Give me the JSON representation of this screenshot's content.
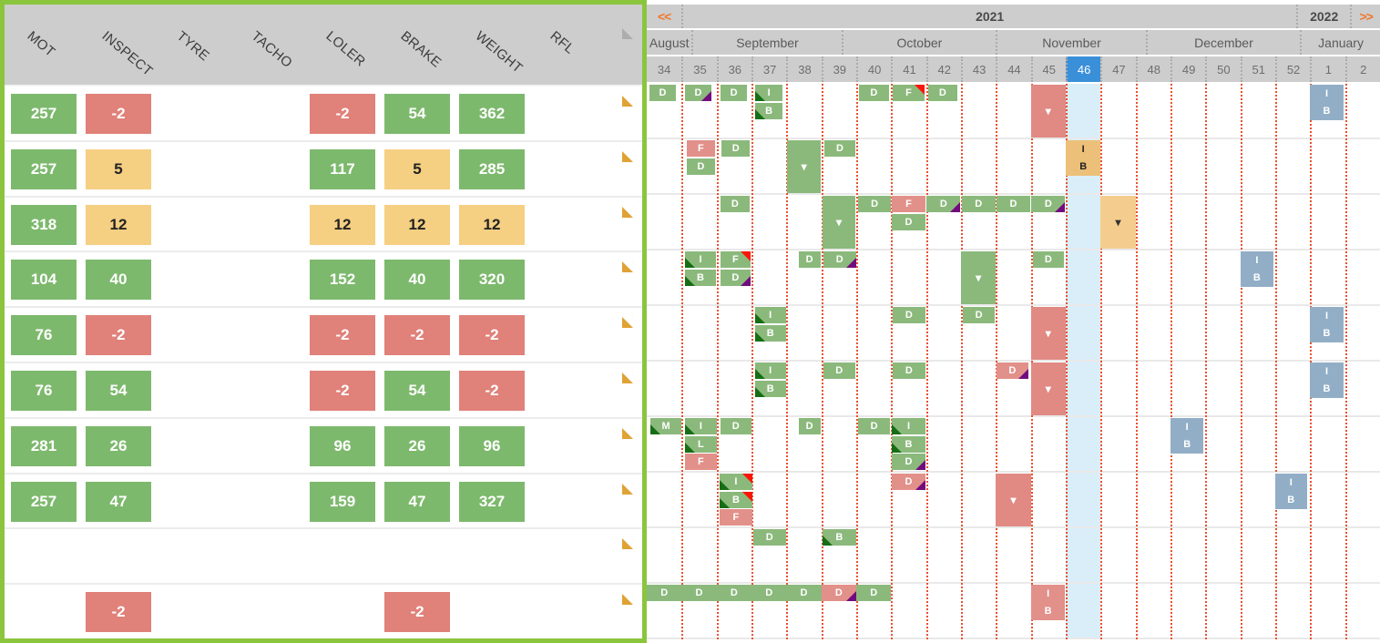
{
  "left_panel": {
    "columns": [
      "MOT",
      "INSPECT",
      "TYRE",
      "TACHO",
      "LOLER",
      "BRAKE",
      "WEIGHT",
      "RFL"
    ],
    "doc_column_icon": "document-icon",
    "rows": [
      {
        "cells": [
          {
            "c": 0,
            "v": "257",
            "s": "g"
          },
          {
            "c": 1,
            "v": "-2",
            "s": "r"
          },
          {
            "c": 4,
            "v": "-2",
            "s": "r"
          },
          {
            "c": 5,
            "v": "54",
            "s": "g"
          },
          {
            "c": 6,
            "v": "362",
            "s": "g"
          }
        ]
      },
      {
        "cells": [
          {
            "c": 0,
            "v": "257",
            "s": "g"
          },
          {
            "c": 1,
            "v": "5",
            "s": "a"
          },
          {
            "c": 4,
            "v": "117",
            "s": "g"
          },
          {
            "c": 5,
            "v": "5",
            "s": "a"
          },
          {
            "c": 6,
            "v": "285",
            "s": "g"
          }
        ]
      },
      {
        "cells": [
          {
            "c": 0,
            "v": "318",
            "s": "g"
          },
          {
            "c": 1,
            "v": "12",
            "s": "a"
          },
          {
            "c": 4,
            "v": "12",
            "s": "a"
          },
          {
            "c": 5,
            "v": "12",
            "s": "a"
          },
          {
            "c": 6,
            "v": "12",
            "s": "a"
          }
        ]
      },
      {
        "cells": [
          {
            "c": 0,
            "v": "104",
            "s": "g"
          },
          {
            "c": 1,
            "v": "40",
            "s": "g"
          },
          {
            "c": 4,
            "v": "152",
            "s": "g"
          },
          {
            "c": 5,
            "v": "40",
            "s": "g"
          },
          {
            "c": 6,
            "v": "320",
            "s": "g"
          }
        ]
      },
      {
        "cells": [
          {
            "c": 0,
            "v": "76",
            "s": "g"
          },
          {
            "c": 1,
            "v": "-2",
            "s": "r"
          },
          {
            "c": 4,
            "v": "-2",
            "s": "r"
          },
          {
            "c": 5,
            "v": "-2",
            "s": "r"
          },
          {
            "c": 6,
            "v": "-2",
            "s": "r"
          }
        ]
      },
      {
        "cells": [
          {
            "c": 0,
            "v": "76",
            "s": "g"
          },
          {
            "c": 1,
            "v": "54",
            "s": "g"
          },
          {
            "c": 4,
            "v": "-2",
            "s": "r"
          },
          {
            "c": 5,
            "v": "54",
            "s": "g"
          },
          {
            "c": 6,
            "v": "-2",
            "s": "r"
          }
        ]
      },
      {
        "cells": [
          {
            "c": 0,
            "v": "281",
            "s": "g"
          },
          {
            "c": 1,
            "v": "26",
            "s": "g"
          },
          {
            "c": 4,
            "v": "96",
            "s": "g"
          },
          {
            "c": 5,
            "v": "26",
            "s": "g"
          },
          {
            "c": 6,
            "v": "96",
            "s": "g"
          }
        ]
      },
      {
        "cells": [
          {
            "c": 0,
            "v": "257",
            "s": "g"
          },
          {
            "c": 1,
            "v": "47",
            "s": "g"
          },
          {
            "c": 4,
            "v": "159",
            "s": "g"
          },
          {
            "c": 5,
            "v": "47",
            "s": "g"
          },
          {
            "c": 6,
            "v": "327",
            "s": "g"
          }
        ]
      },
      {
        "cells": []
      },
      {
        "cells": [
          {
            "c": 1,
            "v": "-2",
            "s": "r"
          },
          {
            "c": 5,
            "v": "-2",
            "s": "r"
          }
        ]
      }
    ]
  },
  "calendar": {
    "nav": {
      "prev": "<<",
      "next": ">>"
    },
    "year_row": [
      {
        "label": "<<",
        "span": 1,
        "kind": "nav-prev"
      },
      {
        "label": "2021",
        "span": 17.6,
        "kind": "year"
      },
      {
        "label": "2022",
        "span": 1.55,
        "kind": "year"
      },
      {
        "label": ">>",
        "span": 0.85,
        "kind": "nav-next"
      }
    ],
    "months": [
      {
        "label": "August",
        "span": 1.29
      },
      {
        "label": "September",
        "span": 4.28
      },
      {
        "label": "October",
        "span": 4.43
      },
      {
        "label": "November",
        "span": 4.29
      },
      {
        "label": "December",
        "span": 4.42
      },
      {
        "label": "January",
        "span": 2.29
      }
    ],
    "weeks": [
      "34",
      "35",
      "36",
      "37",
      "38",
      "39",
      "40",
      "41",
      "42",
      "43",
      "44",
      "45",
      "46",
      "47",
      "48",
      "49",
      "50",
      "51",
      "52",
      "1",
      "2"
    ],
    "current_week": "46",
    "current_week_index": 12,
    "row_count": 10,
    "markers": [
      {
        "r": 0,
        "c": 0,
        "o": 0.08,
        "w": 0.75,
        "l": 0,
        "t": "b",
        "x": "D",
        "s": "g"
      },
      {
        "r": 0,
        "c": 1,
        "o": 0.1,
        "w": 0.75,
        "l": 0,
        "t": "b",
        "x": "D",
        "s": "g",
        "tri": [
          "br"
        ]
      },
      {
        "r": 0,
        "c": 2,
        "o": 0.12,
        "w": 0.75,
        "l": 0,
        "t": "b",
        "x": "D",
        "s": "g"
      },
      {
        "r": 0,
        "c": 3,
        "o": 0.1,
        "w": 0.8,
        "l": 0,
        "t": "b",
        "x": "I",
        "s": "g",
        "tri": [
          "bl"
        ]
      },
      {
        "r": 0,
        "c": 3,
        "o": 0.1,
        "w": 0.8,
        "l": 1,
        "t": "b",
        "x": "B",
        "s": "g",
        "tri": [
          "bl"
        ]
      },
      {
        "r": 0,
        "c": 6,
        "o": 0.08,
        "w": 0.85,
        "l": 0,
        "t": "b",
        "x": "D",
        "s": "g"
      },
      {
        "r": 0,
        "c": 7,
        "o": 0.05,
        "w": 0.9,
        "l": 0,
        "t": "b",
        "x": "F",
        "s": "g",
        "tri": [
          "tr"
        ]
      },
      {
        "r": 0,
        "c": 8,
        "o": 0.05,
        "w": 0.85,
        "l": 0,
        "t": "b",
        "x": "D",
        "s": "g"
      },
      {
        "r": 0,
        "c": 11,
        "o": 0,
        "w": 1,
        "t": "t",
        "s": "rt"
      },
      {
        "r": 0,
        "c": 19,
        "o": 0,
        "w": 0.95,
        "t": "ib",
        "x": "I|B",
        "s": "sb"
      },
      {
        "r": 1,
        "c": 1,
        "o": 0.15,
        "w": 0.8,
        "l": 0,
        "t": "b",
        "x": "F",
        "s": "s"
      },
      {
        "r": 1,
        "c": 1,
        "o": 0.15,
        "w": 0.8,
        "l": 1,
        "t": "b",
        "x": "D",
        "s": "g"
      },
      {
        "r": 1,
        "c": 2,
        "o": 0.15,
        "w": 0.8,
        "l": 0,
        "t": "b",
        "x": "D",
        "s": "g"
      },
      {
        "r": 1,
        "c": 4,
        "o": 0.03,
        "w": 0.95,
        "t": "t",
        "s": "gt"
      },
      {
        "r": 1,
        "c": 5,
        "o": 0.08,
        "w": 0.9,
        "l": 0,
        "t": "b",
        "x": "D",
        "s": "g"
      },
      {
        "r": 1,
        "c": 12,
        "o": 0,
        "w": 1,
        "t": "ib",
        "x": "I|B",
        "s": "ob"
      },
      {
        "r": 2,
        "c": 2,
        "o": 0.1,
        "w": 0.85,
        "l": 0,
        "t": "b",
        "x": "D",
        "s": "g"
      },
      {
        "r": 2,
        "c": 5,
        "o": 0.03,
        "w": 0.95,
        "t": "t",
        "s": "gt"
      },
      {
        "r": 2,
        "c": 6,
        "o": 0.05,
        "w": 0.95,
        "l": 0,
        "t": "b",
        "x": "D",
        "s": "g"
      },
      {
        "r": 2,
        "c": 7,
        "o": 0.02,
        "w": 0.96,
        "l": 0,
        "t": "b",
        "x": "F",
        "s": "s"
      },
      {
        "r": 2,
        "c": 7,
        "o": 0.02,
        "w": 0.96,
        "l": 1,
        "t": "b",
        "x": "D",
        "s": "g"
      },
      {
        "r": 2,
        "c": 8,
        "o": 0.02,
        "w": 0.96,
        "l": 0,
        "t": "b",
        "x": "D",
        "s": "g",
        "tri": [
          "br"
        ]
      },
      {
        "r": 2,
        "c": 9,
        "o": 0.02,
        "w": 0.96,
        "l": 0,
        "t": "b",
        "x": "D",
        "s": "g"
      },
      {
        "r": 2,
        "c": 10,
        "o": 0.02,
        "w": 0.96,
        "l": 0,
        "t": "b",
        "x": "D",
        "s": "g"
      },
      {
        "r": 2,
        "c": 11,
        "o": 0.02,
        "w": 0.96,
        "l": 0,
        "t": "b",
        "x": "D",
        "s": "g",
        "tri": [
          "br"
        ]
      },
      {
        "r": 2,
        "c": 13,
        "o": 0,
        "w": 1,
        "t": "t",
        "s": "ot"
      },
      {
        "r": 3,
        "c": 1,
        "o": 0.1,
        "w": 0.88,
        "l": 0,
        "t": "b",
        "x": "I",
        "s": "g",
        "tri": [
          "bl"
        ]
      },
      {
        "r": 3,
        "c": 1,
        "o": 0.1,
        "w": 0.88,
        "l": 1,
        "t": "b",
        "x": "B",
        "s": "g",
        "tri": [
          "bl"
        ]
      },
      {
        "r": 3,
        "c": 2,
        "o": 0.1,
        "w": 0.88,
        "l": 0,
        "t": "b",
        "x": "F",
        "s": "g",
        "tri": [
          "tr"
        ]
      },
      {
        "r": 3,
        "c": 2,
        "o": 0.1,
        "w": 0.88,
        "l": 1,
        "t": "b",
        "x": "D",
        "s": "g",
        "tri": [
          "br"
        ]
      },
      {
        "r": 3,
        "c": 4,
        "o": 0.35,
        "w": 0.62,
        "l": 0,
        "t": "b",
        "x": "D",
        "s": "g"
      },
      {
        "r": 3,
        "c": 5,
        "o": 0.05,
        "w": 0.95,
        "l": 0,
        "t": "b",
        "x": "D",
        "s": "g",
        "tri": [
          "br"
        ]
      },
      {
        "r": 3,
        "c": 9,
        "o": 0,
        "w": 1,
        "t": "t",
        "s": "gt"
      },
      {
        "r": 3,
        "c": 11,
        "o": 0.05,
        "w": 0.9,
        "l": 0,
        "t": "b",
        "x": "D",
        "s": "g"
      },
      {
        "r": 3,
        "c": 17,
        "o": 0,
        "w": 0.95,
        "t": "ib",
        "x": "I|B",
        "s": "sb"
      },
      {
        "r": 4,
        "c": 3,
        "o": 0.1,
        "w": 0.88,
        "l": 0,
        "t": "b",
        "x": "I",
        "s": "g",
        "tri": [
          "bl"
        ]
      },
      {
        "r": 4,
        "c": 3,
        "o": 0.1,
        "w": 0.88,
        "l": 1,
        "t": "b",
        "x": "B",
        "s": "g",
        "tri": [
          "bl"
        ]
      },
      {
        "r": 4,
        "c": 7,
        "o": 0.05,
        "w": 0.92,
        "l": 0,
        "t": "b",
        "x": "D",
        "s": "g"
      },
      {
        "r": 4,
        "c": 9,
        "o": 0.05,
        "w": 0.92,
        "l": 0,
        "t": "b",
        "x": "D",
        "s": "g"
      },
      {
        "r": 4,
        "c": 11,
        "o": 0,
        "w": 1,
        "t": "t",
        "s": "rt"
      },
      {
        "r": 4,
        "c": 19,
        "o": 0,
        "w": 0.95,
        "t": "ib",
        "x": "I|B",
        "s": "sb"
      },
      {
        "r": 5,
        "c": 3,
        "o": 0.1,
        "w": 0.88,
        "l": 0,
        "t": "b",
        "x": "I",
        "s": "g",
        "tri": [
          "bl"
        ]
      },
      {
        "r": 5,
        "c": 3,
        "o": 0.1,
        "w": 0.88,
        "l": 1,
        "t": "b",
        "x": "B",
        "s": "g",
        "tri": [
          "bl"
        ]
      },
      {
        "r": 5,
        "c": 5,
        "o": 0.05,
        "w": 0.92,
        "l": 0,
        "t": "b",
        "x": "D",
        "s": "g"
      },
      {
        "r": 5,
        "c": 7,
        "o": 0.05,
        "w": 0.92,
        "l": 0,
        "t": "b",
        "x": "D",
        "s": "g"
      },
      {
        "r": 5,
        "c": 10,
        "o": 0.02,
        "w": 0.9,
        "l": 0,
        "t": "b",
        "x": "D",
        "s": "s",
        "tri": [
          "br"
        ]
      },
      {
        "r": 5,
        "c": 11,
        "o": 0,
        "w": 1,
        "t": "t",
        "s": "rt"
      },
      {
        "r": 5,
        "c": 19,
        "o": 0,
        "w": 0.95,
        "t": "ib",
        "x": "I|B",
        "s": "sb"
      },
      {
        "r": 6,
        "c": 0,
        "o": 0.1,
        "w": 0.9,
        "l": 0,
        "t": "b",
        "x": "M",
        "s": "g",
        "tri": [
          "bl"
        ]
      },
      {
        "r": 6,
        "c": 1,
        "o": 0.1,
        "w": 0.9,
        "l": 0,
        "t": "b",
        "x": "I",
        "s": "g",
        "tri": [
          "bl"
        ]
      },
      {
        "r": 6,
        "c": 1,
        "o": 0.1,
        "w": 0.9,
        "l": 1,
        "t": "b",
        "x": "L",
        "s": "g",
        "tri": [
          "bl"
        ]
      },
      {
        "r": 6,
        "c": 1,
        "o": 0.1,
        "w": 0.9,
        "l": 2,
        "t": "b",
        "x": "F",
        "s": "s"
      },
      {
        "r": 6,
        "c": 2,
        "o": 0.1,
        "w": 0.9,
        "l": 0,
        "t": "b",
        "x": "D",
        "s": "g"
      },
      {
        "r": 6,
        "c": 4,
        "o": 0.35,
        "w": 0.62,
        "l": 0,
        "t": "b",
        "x": "D",
        "s": "g"
      },
      {
        "r": 6,
        "c": 6,
        "o": 0.05,
        "w": 0.92,
        "l": 0,
        "t": "b",
        "x": "D",
        "s": "g"
      },
      {
        "r": 6,
        "c": 7,
        "o": 0.02,
        "w": 0.96,
        "l": 0,
        "t": "b",
        "x": "I",
        "s": "g",
        "tri": [
          "bl"
        ]
      },
      {
        "r": 6,
        "c": 7,
        "o": 0.02,
        "w": 0.96,
        "l": 1,
        "t": "b",
        "x": "B",
        "s": "g",
        "tri": [
          "bl"
        ]
      },
      {
        "r": 6,
        "c": 7,
        "o": 0.02,
        "w": 0.96,
        "l": 2,
        "t": "b",
        "x": "D",
        "s": "g",
        "tri": [
          "br"
        ]
      },
      {
        "r": 6,
        "c": 15,
        "o": 0,
        "w": 0.95,
        "t": "ib",
        "x": "I|B",
        "s": "sb"
      },
      {
        "r": 7,
        "c": 2,
        "o": 0.08,
        "w": 0.95,
        "l": 0,
        "t": "b",
        "x": "I",
        "s": "g",
        "tri": [
          "bl",
          "tr"
        ]
      },
      {
        "r": 7,
        "c": 2,
        "o": 0.08,
        "w": 0.95,
        "l": 1,
        "t": "b",
        "x": "B",
        "s": "g",
        "tri": [
          "bl",
          "tr"
        ]
      },
      {
        "r": 7,
        "c": 2,
        "o": 0.08,
        "w": 0.95,
        "l": 2,
        "t": "b",
        "x": "F",
        "s": "s"
      },
      {
        "r": 7,
        "c": 7,
        "o": 0.02,
        "w": 0.96,
        "l": 0,
        "t": "b",
        "x": "D",
        "s": "s",
        "tri": [
          "br"
        ]
      },
      {
        "r": 7,
        "c": 10,
        "o": 0,
        "w": 1,
        "t": "t",
        "s": "rt"
      },
      {
        "r": 7,
        "c": 18,
        "o": 0,
        "w": 0.9,
        "t": "ib",
        "x": "I|B",
        "s": "sb"
      },
      {
        "r": 8,
        "c": 3,
        "o": 0.04,
        "w": 0.95,
        "l": 0,
        "t": "b",
        "x": "D",
        "s": "g"
      },
      {
        "r": 8,
        "c": 5,
        "o": 0.04,
        "w": 0.95,
        "l": 0,
        "t": "b",
        "x": "B",
        "s": "g",
        "tri": [
          "bl"
        ]
      },
      {
        "r": 9,
        "c": 0,
        "o": 0,
        "w": 1,
        "l": 0,
        "t": "b",
        "x": "D",
        "s": "g"
      },
      {
        "r": 9,
        "c": 1,
        "o": 0,
        "w": 1,
        "l": 0,
        "t": "b",
        "x": "D",
        "s": "g"
      },
      {
        "r": 9,
        "c": 2,
        "o": 0,
        "w": 1,
        "l": 0,
        "t": "b",
        "x": "D",
        "s": "g"
      },
      {
        "r": 9,
        "c": 3,
        "o": 0,
        "w": 1,
        "l": 0,
        "t": "b",
        "x": "D",
        "s": "g"
      },
      {
        "r": 9,
        "c": 4,
        "o": 0,
        "w": 1,
        "l": 0,
        "t": "b",
        "x": "D",
        "s": "g"
      },
      {
        "r": 9,
        "c": 5,
        "o": 0,
        "w": 1,
        "l": 0,
        "t": "b",
        "x": "D",
        "s": "s",
        "tri": [
          "br"
        ]
      },
      {
        "r": 9,
        "c": 6,
        "o": 0,
        "w": 1,
        "l": 0,
        "t": "b",
        "x": "D",
        "s": "g"
      },
      {
        "r": 9,
        "c": 11,
        "o": 0.02,
        "w": 0.95,
        "t": "ib",
        "x": "I|B",
        "s": "rb"
      }
    ]
  },
  "colors": {
    "panel_border": "#8bc53e",
    "header_bg": "#cdcdcd",
    "cell_green": "#7db96d",
    "cell_red": "#e0817a",
    "cell_amber": "#f5cf82",
    "doc_icon": "#f0b24a",
    "doc_fold": "#dfa335",
    "doc_icon_gray": "#c6c6c6",
    "grid_line": "#e8512e",
    "week_chip": "#3a8fd9",
    "week_col": "#daeef9",
    "box_green": "#8bb97c",
    "box_salmon": "#e2908a",
    "tall_red": "#e18983",
    "tall_green": "#8bb97c",
    "tall_orange": "#f4cd8e",
    "ib_orange": "#ecc078",
    "ib_steel": "#92aec6",
    "ib_red": "#e2908a",
    "tri_dark_green": "#156e15",
    "tri_purple": "#720b7e",
    "tri_red": "#fa1505",
    "arrow": "#f0782a"
  }
}
